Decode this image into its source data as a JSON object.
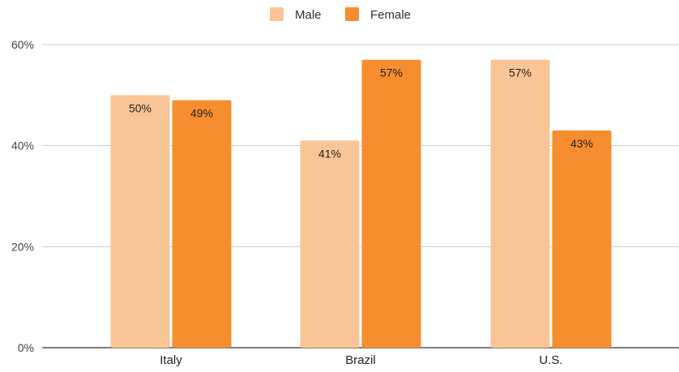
{
  "chart_data": {
    "type": "bar",
    "categories": [
      "Italy",
      "Brazil",
      "U.S."
    ],
    "series": [
      {
        "name": "Male",
        "values": [
          50,
          41,
          57
        ],
        "color": "#f9c596",
        "labels": [
          "50%",
          "41%",
          "57%"
        ]
      },
      {
        "name": "Female",
        "values": [
          49,
          57,
          43
        ],
        "color": "#f68d2e",
        "labels": [
          "49%",
          "57%",
          "43%"
        ]
      }
    ],
    "ylim": [
      0,
      60
    ],
    "yticks": [
      0,
      20,
      40,
      60
    ],
    "ytick_labels": [
      "0%",
      "20%",
      "40%",
      "60%"
    ],
    "grid": true,
    "legend_position": "top-center"
  }
}
